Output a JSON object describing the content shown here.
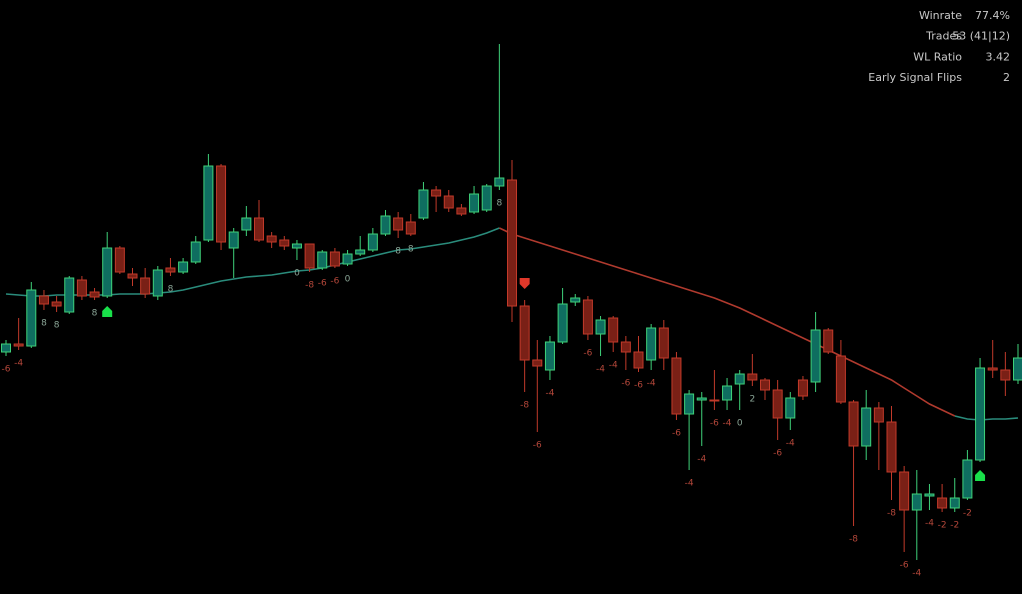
{
  "chart_data": {
    "type": "candlestick",
    "ylim": [
      0,
      594
    ],
    "up_color": "#0f6e60",
    "up_border": "#3fd27a",
    "down_color": "#7a2016",
    "down_border": "#c23a2a",
    "wick_up": "#3fd27a",
    "wick_down": "#c23a2a",
    "open": [
      242,
      250,
      248,
      298,
      292,
      282,
      314,
      302,
      298,
      346,
      320,
      316,
      298,
      326,
      322,
      332,
      354,
      428,
      346,
      364,
      376,
      358,
      354,
      346,
      350,
      326,
      342,
      330,
      340,
      344,
      360,
      376,
      372,
      376,
      404,
      398,
      386,
      382,
      384,
      408,
      414,
      288,
      234,
      224,
      252,
      292,
      294,
      260,
      276,
      252,
      242,
      234,
      266,
      236,
      180,
      194,
      194,
      194,
      210,
      220,
      214,
      204,
      176,
      214,
      212,
      264,
      238,
      192,
      148,
      186,
      172,
      122,
      84,
      98,
      96,
      86,
      96,
      134,
      226,
      224,
      214
    ],
    "high": [
      254,
      276,
      312,
      304,
      298,
      318,
      318,
      306,
      362,
      348,
      326,
      326,
      328,
      336,
      336,
      358,
      440,
      430,
      366,
      388,
      394,
      362,
      358,
      354,
      350,
      344,
      346,
      344,
      358,
      366,
      384,
      382,
      380,
      412,
      408,
      404,
      390,
      408,
      410,
      550,
      434,
      294,
      254,
      258,
      306,
      300,
      298,
      278,
      278,
      258,
      258,
      270,
      274,
      242,
      204,
      202,
      224,
      216,
      224,
      240,
      216,
      214,
      202,
      218,
      282,
      266,
      254,
      194,
      204,
      192,
      188,
      128,
      124,
      110,
      110,
      116,
      144,
      236,
      254,
      242,
      250
    ],
    "low": [
      238,
      244,
      246,
      284,
      282,
      280,
      294,
      294,
      296,
      320,
      308,
      296,
      294,
      318,
      320,
      330,
      352,
      344,
      316,
      358,
      352,
      346,
      344,
      334,
      322,
      324,
      326,
      328,
      338,
      342,
      358,
      356,
      358,
      374,
      382,
      382,
      378,
      380,
      382,
      404,
      272,
      202,
      162,
      214,
      250,
      288,
      254,
      238,
      242,
      224,
      222,
      224,
      224,
      174,
      124,
      148,
      184,
      184,
      184,
      208,
      194,
      154,
      164,
      194,
      202,
      240,
      190,
      68,
      134,
      124,
      94,
      42,
      34,
      84,
      82,
      82,
      94,
      132,
      216,
      198,
      210
    ],
    "close": [
      250,
      248,
      304,
      290,
      288,
      316,
      298,
      297,
      346,
      322,
      316,
      300,
      324,
      322,
      332,
      352,
      428,
      352,
      362,
      376,
      354,
      352,
      348,
      350,
      326,
      342,
      328,
      340,
      344,
      360,
      378,
      364,
      360,
      404,
      398,
      386,
      380,
      400,
      408,
      416,
      288,
      234,
      228,
      252,
      290,
      296,
      260,
      274,
      252,
      242,
      226,
      266,
      236,
      180,
      200,
      196,
      193,
      208,
      220,
      214,
      204,
      176,
      196,
      198,
      264,
      242,
      192,
      148,
      186,
      172,
      122,
      84,
      100,
      100,
      86,
      96,
      134,
      226,
      224,
      214,
      236
    ],
    "signals": [
      -6,
      -4,
      null,
      8,
      8,
      null,
      null,
      8,
      null,
      null,
      null,
      null,
      null,
      8,
      null,
      null,
      null,
      null,
      null,
      null,
      null,
      null,
      null,
      0,
      -8,
      -6,
      -6,
      0,
      null,
      null,
      null,
      8,
      8,
      null,
      null,
      null,
      null,
      null,
      null,
      8,
      null,
      -8,
      -6,
      -4,
      null,
      null,
      -6,
      -4,
      -4,
      -6,
      -6,
      -4,
      null,
      -6,
      -4,
      -4,
      -6,
      -4,
      0,
      2,
      null,
      -6,
      -4,
      null,
      null,
      null,
      null,
      -8,
      null,
      null,
      -8,
      -6,
      -4,
      -4,
      -2,
      -2,
      -2,
      null,
      null,
      null,
      null
    ],
    "signal_color_negative": "#b4473a",
    "signal_color_positive": "#8aa596",
    "ma_up": {
      "color": "#2a8c7c",
      "values": [
        300,
        299,
        298,
        298,
        299,
        299,
        299,
        299,
        299,
        300,
        300,
        300,
        301,
        302,
        304,
        307,
        310,
        313,
        315,
        317,
        318,
        319,
        321,
        323,
        324,
        326,
        329,
        332,
        335,
        338,
        341,
        344,
        345,
        347,
        349,
        351,
        354,
        357,
        361,
        366,
        null,
        null,
        null,
        null,
        null,
        null,
        null,
        null,
        null,
        null,
        null,
        null,
        null,
        null,
        null,
        null,
        null,
        null,
        null,
        null,
        null,
        null,
        null,
        null,
        null,
        null,
        null,
        null,
        null,
        null,
        null,
        null,
        null,
        null,
        null,
        178,
        175,
        174,
        175,
        175,
        176
      ]
    },
    "ma_down": {
      "color": "#b03a2e",
      "values": [
        null,
        null,
        null,
        null,
        null,
        null,
        null,
        null,
        null,
        null,
        null,
        null,
        null,
        null,
        null,
        null,
        null,
        null,
        null,
        null,
        null,
        null,
        null,
        null,
        null,
        null,
        null,
        null,
        null,
        null,
        null,
        null,
        null,
        null,
        null,
        null,
        null,
        null,
        null,
        366,
        360,
        356,
        352,
        348,
        344,
        340,
        336,
        332,
        328,
        324,
        320,
        316,
        312,
        308,
        304,
        300,
        296,
        291,
        286,
        280,
        274,
        268,
        262,
        256,
        250,
        244,
        238,
        232,
        226,
        220,
        214,
        206,
        198,
        190,
        184,
        178,
        null,
        null,
        null,
        null,
        null
      ]
    },
    "long_signals": [
      8,
      77
    ],
    "long_color": "#19e04a",
    "short_signals": [
      41
    ],
    "short_color": "#e0382a"
  },
  "stats": {
    "rows": [
      [
        "Winrate",
        "77.4%"
      ],
      [
        "Trades",
        "53 (41|12)"
      ],
      [
        "WL Ratio",
        "3.42"
      ],
      [
        "Early Signal Flips",
        "2"
      ]
    ]
  }
}
